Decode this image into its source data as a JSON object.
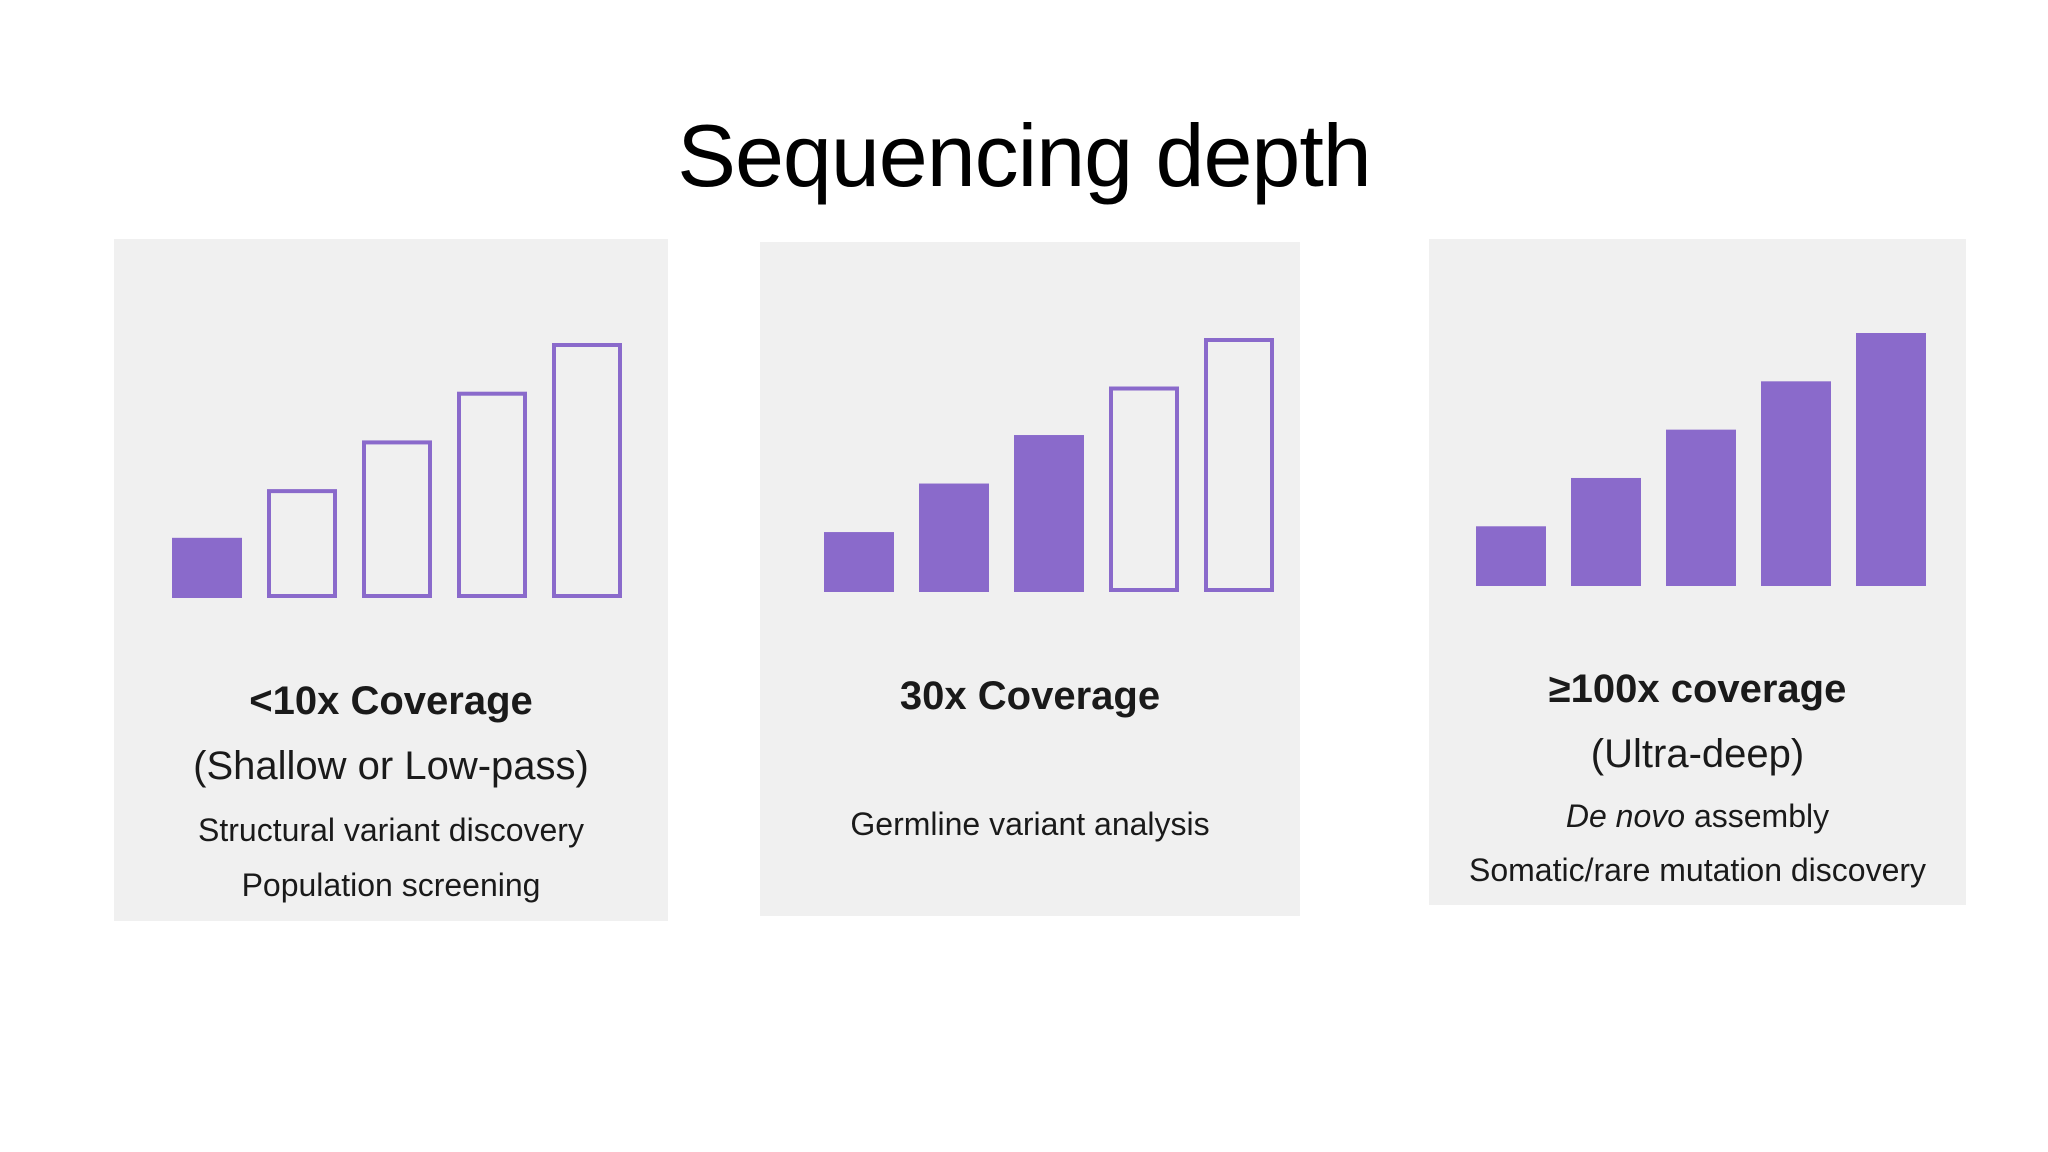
{
  "title": "Sequencing depth",
  "colors": {
    "bar_fill": "#8a6acb",
    "bar_stroke": "#8a6acb",
    "card_bg": "#f0f0f0"
  },
  "cards": [
    {
      "coverage": "<10x Coverage",
      "subtitle": "(Shallow or Low-pass)",
      "uses": [
        "Structural variant discovery",
        "Population screening"
      ],
      "bars_total": 5,
      "bars_filled": 1
    },
    {
      "coverage": "30x Coverage",
      "subtitle": "",
      "uses": [
        "Germline variant analysis"
      ],
      "bars_total": 5,
      "bars_filled": 3
    },
    {
      "coverage": "≥100x coverage",
      "subtitle": "(Ultra-deep)",
      "uses_rich": {
        "italic": "De novo",
        "rest": " assembly"
      },
      "uses": [
        "Somatic/rare mutation discovery"
      ],
      "bars_total": 5,
      "bars_filled": 5
    }
  ]
}
